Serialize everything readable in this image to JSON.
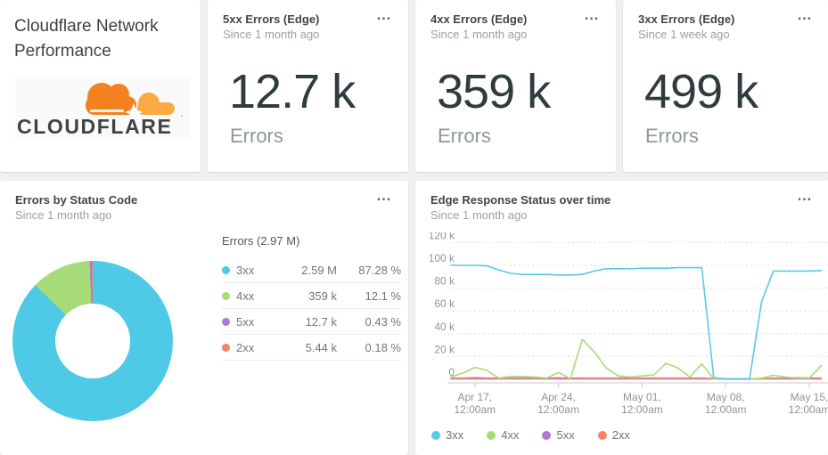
{
  "ui": {
    "menu_glyph": "…"
  },
  "title_card": {
    "title": "Cloudflare Network Performance",
    "logo_text": "CLOUDFLARE",
    "logo_orange": "#f48120",
    "logo_light_orange": "#f9ab41"
  },
  "billboards": [
    {
      "title": "5xx Errors (Edge)",
      "subtitle": "Since 1 month ago",
      "value": "12.7 k",
      "unit": "Errors"
    },
    {
      "title": "4xx Errors (Edge)",
      "subtitle": "Since 1 month ago",
      "value": "359 k",
      "unit": "Errors"
    },
    {
      "title": "3xx Errors (Edge)",
      "subtitle": "Since 1 week ago",
      "value": "499 k",
      "unit": "Errors"
    }
  ],
  "pie_card": {
    "title": "Errors by Status Code",
    "subtitle": "Since 1 month ago",
    "table_header": "Errors (2.97 M)"
  },
  "timeseries_card": {
    "title": "Edge Response Status over time",
    "subtitle": "Since 1 month ago"
  },
  "chart_data": [
    {
      "type": "pie",
      "donut": true,
      "title": "Errors by Status Code",
      "total_label": "Errors (2.97 M)",
      "labels": [
        "3xx",
        "4xx",
        "5xx",
        "2xx"
      ],
      "values": [
        2590000,
        359000,
        12700,
        5440
      ],
      "values_text": [
        "2.59 M",
        "359 k",
        "12.7 k",
        "5.44 k"
      ],
      "percents": [
        87.28,
        12.1,
        0.43,
        0.18
      ],
      "percents_text": [
        "87.28 %",
        "12.1 %",
        "0.43 %",
        "0.18 %"
      ],
      "colors": [
        "#4ec9e6",
        "#a7db78",
        "#b07ad4",
        "#f28463"
      ],
      "legend_position": "right-table"
    },
    {
      "type": "line",
      "title": "Edge Response Status over time",
      "ylim": [
        0,
        120000
      ],
      "grid": true,
      "legend_position": "bottom",
      "y_ticks": [
        {
          "label": "120 k",
          "value": 120000
        },
        {
          "label": "100 k",
          "value": 100000
        },
        {
          "label": "80 k",
          "value": 80000
        },
        {
          "label": "60 k",
          "value": 60000
        },
        {
          "label": "40 k",
          "value": 40000
        },
        {
          "label": "20 k",
          "value": 20000
        },
        {
          "label": "0",
          "value": 0
        }
      ],
      "x_ticks": [
        {
          "line1": "Apr 17,",
          "line2": "12:00am",
          "day": 2
        },
        {
          "line1": "Apr 24,",
          "line2": "12:00am",
          "day": 9
        },
        {
          "line1": "May 01,",
          "line2": "12:00am",
          "day": 16
        },
        {
          "line1": "May 08,",
          "line2": "12:00am",
          "day": 23
        },
        {
          "line1": "May 15,",
          "line2": "12:00am",
          "day": 30
        }
      ],
      "series": [
        {
          "name": "3xx",
          "color": "#58c9e8",
          "values": [
            100000,
            100000,
            100000,
            99500,
            96000,
            93000,
            92000,
            92000,
            92000,
            91500,
            91500,
            92000,
            95000,
            97000,
            97000,
            97000,
            97500,
            97500,
            97500,
            98000,
            98000,
            98000,
            1500,
            400,
            300,
            300,
            68000,
            95000,
            95000,
            95000,
            95000,
            95500
          ]
        },
        {
          "name": "4xx",
          "color": "#a7db78",
          "values": [
            2000,
            5500,
            10500,
            8000,
            1000,
            2500,
            2500,
            2000,
            1000,
            6000,
            500,
            35000,
            24000,
            10000,
            3000,
            2000,
            3000,
            4000,
            14000,
            10000,
            2000,
            13500,
            500,
            0,
            0,
            0,
            1000,
            3500,
            2000,
            1000,
            1000,
            12000
          ]
        },
        {
          "name": "5xx",
          "color": "#b07ad4",
          "values": [
            400,
            400,
            400,
            400,
            400,
            400,
            400,
            400,
            400,
            400,
            400,
            400,
            400,
            400,
            400,
            400,
            400,
            400,
            400,
            400,
            400,
            400,
            400,
            400,
            400,
            400,
            400,
            400,
            400,
            400,
            400,
            400
          ]
        },
        {
          "name": "2xx",
          "color": "#f28463",
          "values": [
            1000,
            1000,
            1500,
            1200,
            1000,
            1000,
            1200,
            1000,
            1000,
            1300,
            1000,
            1200,
            1000,
            1000,
            1200,
            1000,
            1000,
            1200,
            1000,
            1000,
            1000,
            1200,
            600,
            300,
            300,
            300,
            500,
            1000,
            1000,
            1500,
            1200,
            1000
          ]
        }
      ]
    }
  ]
}
